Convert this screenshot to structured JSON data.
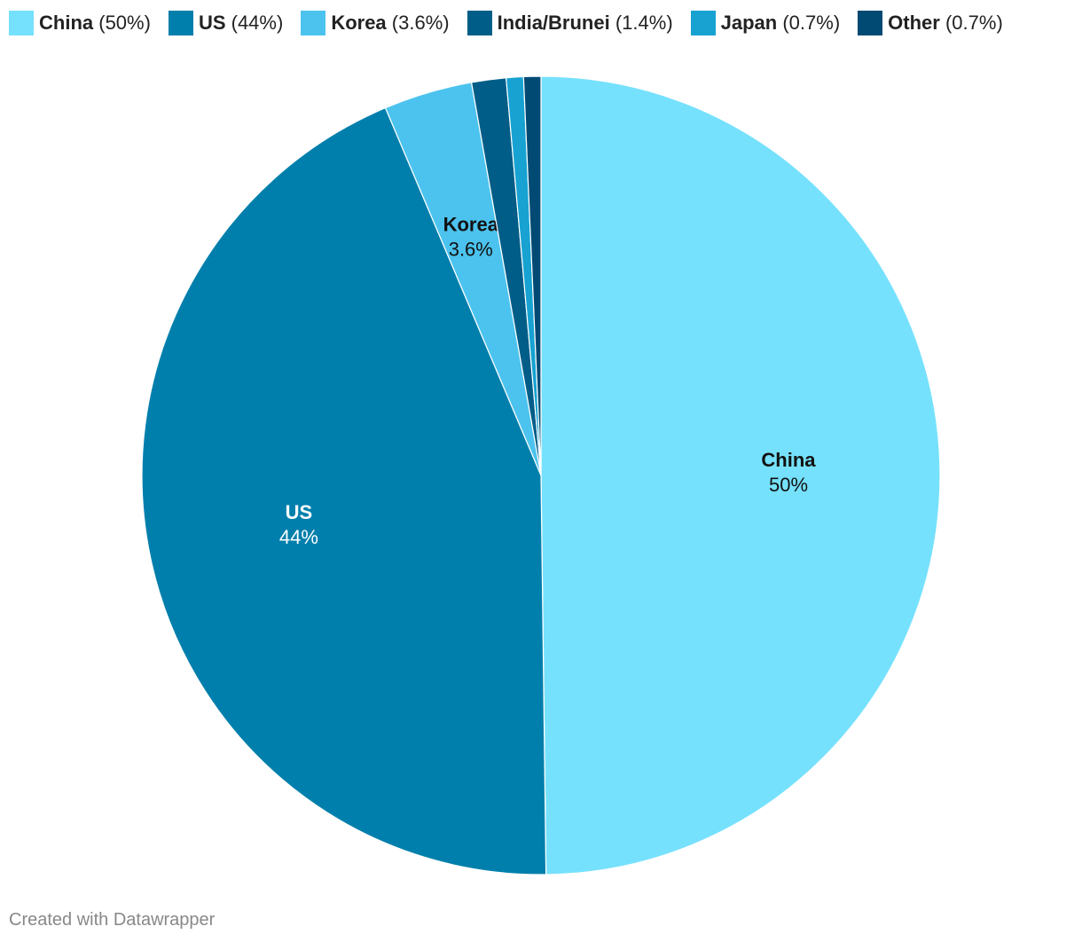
{
  "chart_data": {
    "type": "pie",
    "categories": [
      "China",
      "US",
      "Korea",
      "India/Brunei",
      "Japan",
      "Other"
    ],
    "values": [
      50,
      44,
      3.6,
      1.4,
      0.7,
      0.7
    ],
    "value_labels": [
      "50%",
      "44%",
      "3.6%",
      "1.4%",
      "0.7%",
      "0.7%"
    ],
    "legend_value_labels": [
      "(50%)",
      "(44%)",
      "(3.6%)",
      "(1.4%)",
      "(0.7%)",
      "(0.7%)"
    ],
    "colors": [
      "#76e1fd",
      "#007fac",
      "#4cc3ee",
      "#005d87",
      "#17a2d2",
      "#004a73"
    ],
    "legend": "top-left",
    "footer": "Created with Datawrapper"
  }
}
